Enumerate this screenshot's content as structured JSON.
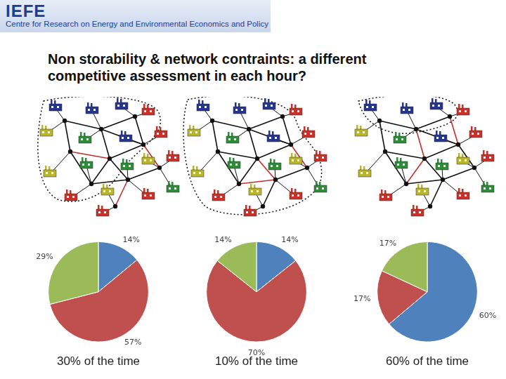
{
  "header": {
    "logo": "IEFE",
    "subtitle": "Centre for Research on Energy and Environmental Economics and Policy"
  },
  "title": "Non storability & network contraints: a different competitive assessment in each hour?",
  "chart_data": [
    {
      "type": "pie",
      "title": "30% of the time",
      "values": [
        14,
        57,
        29
      ],
      "value_labels": [
        "14%",
        "57%",
        "29%"
      ],
      "colors": [
        "#4f81bd",
        "#c0504d",
        "#9bbb59"
      ],
      "data_labels": true
    },
    {
      "type": "pie",
      "title": "10% of the time",
      "values": [
        14,
        70,
        14
      ],
      "value_labels": [
        "14%",
        "70%",
        "14%"
      ],
      "colors": [
        "#4f81bd",
        "#c0504d",
        "#9bbb59"
      ],
      "data_labels": true
    },
    {
      "type": "pie",
      "title": "60% of the time",
      "values": [
        60,
        17,
        17
      ],
      "value_labels": [
        "60%",
        "17%",
        "17%"
      ],
      "colors": [
        "#4f81bd",
        "#c0504d",
        "#9bbb59"
      ],
      "data_labels": true
    }
  ]
}
